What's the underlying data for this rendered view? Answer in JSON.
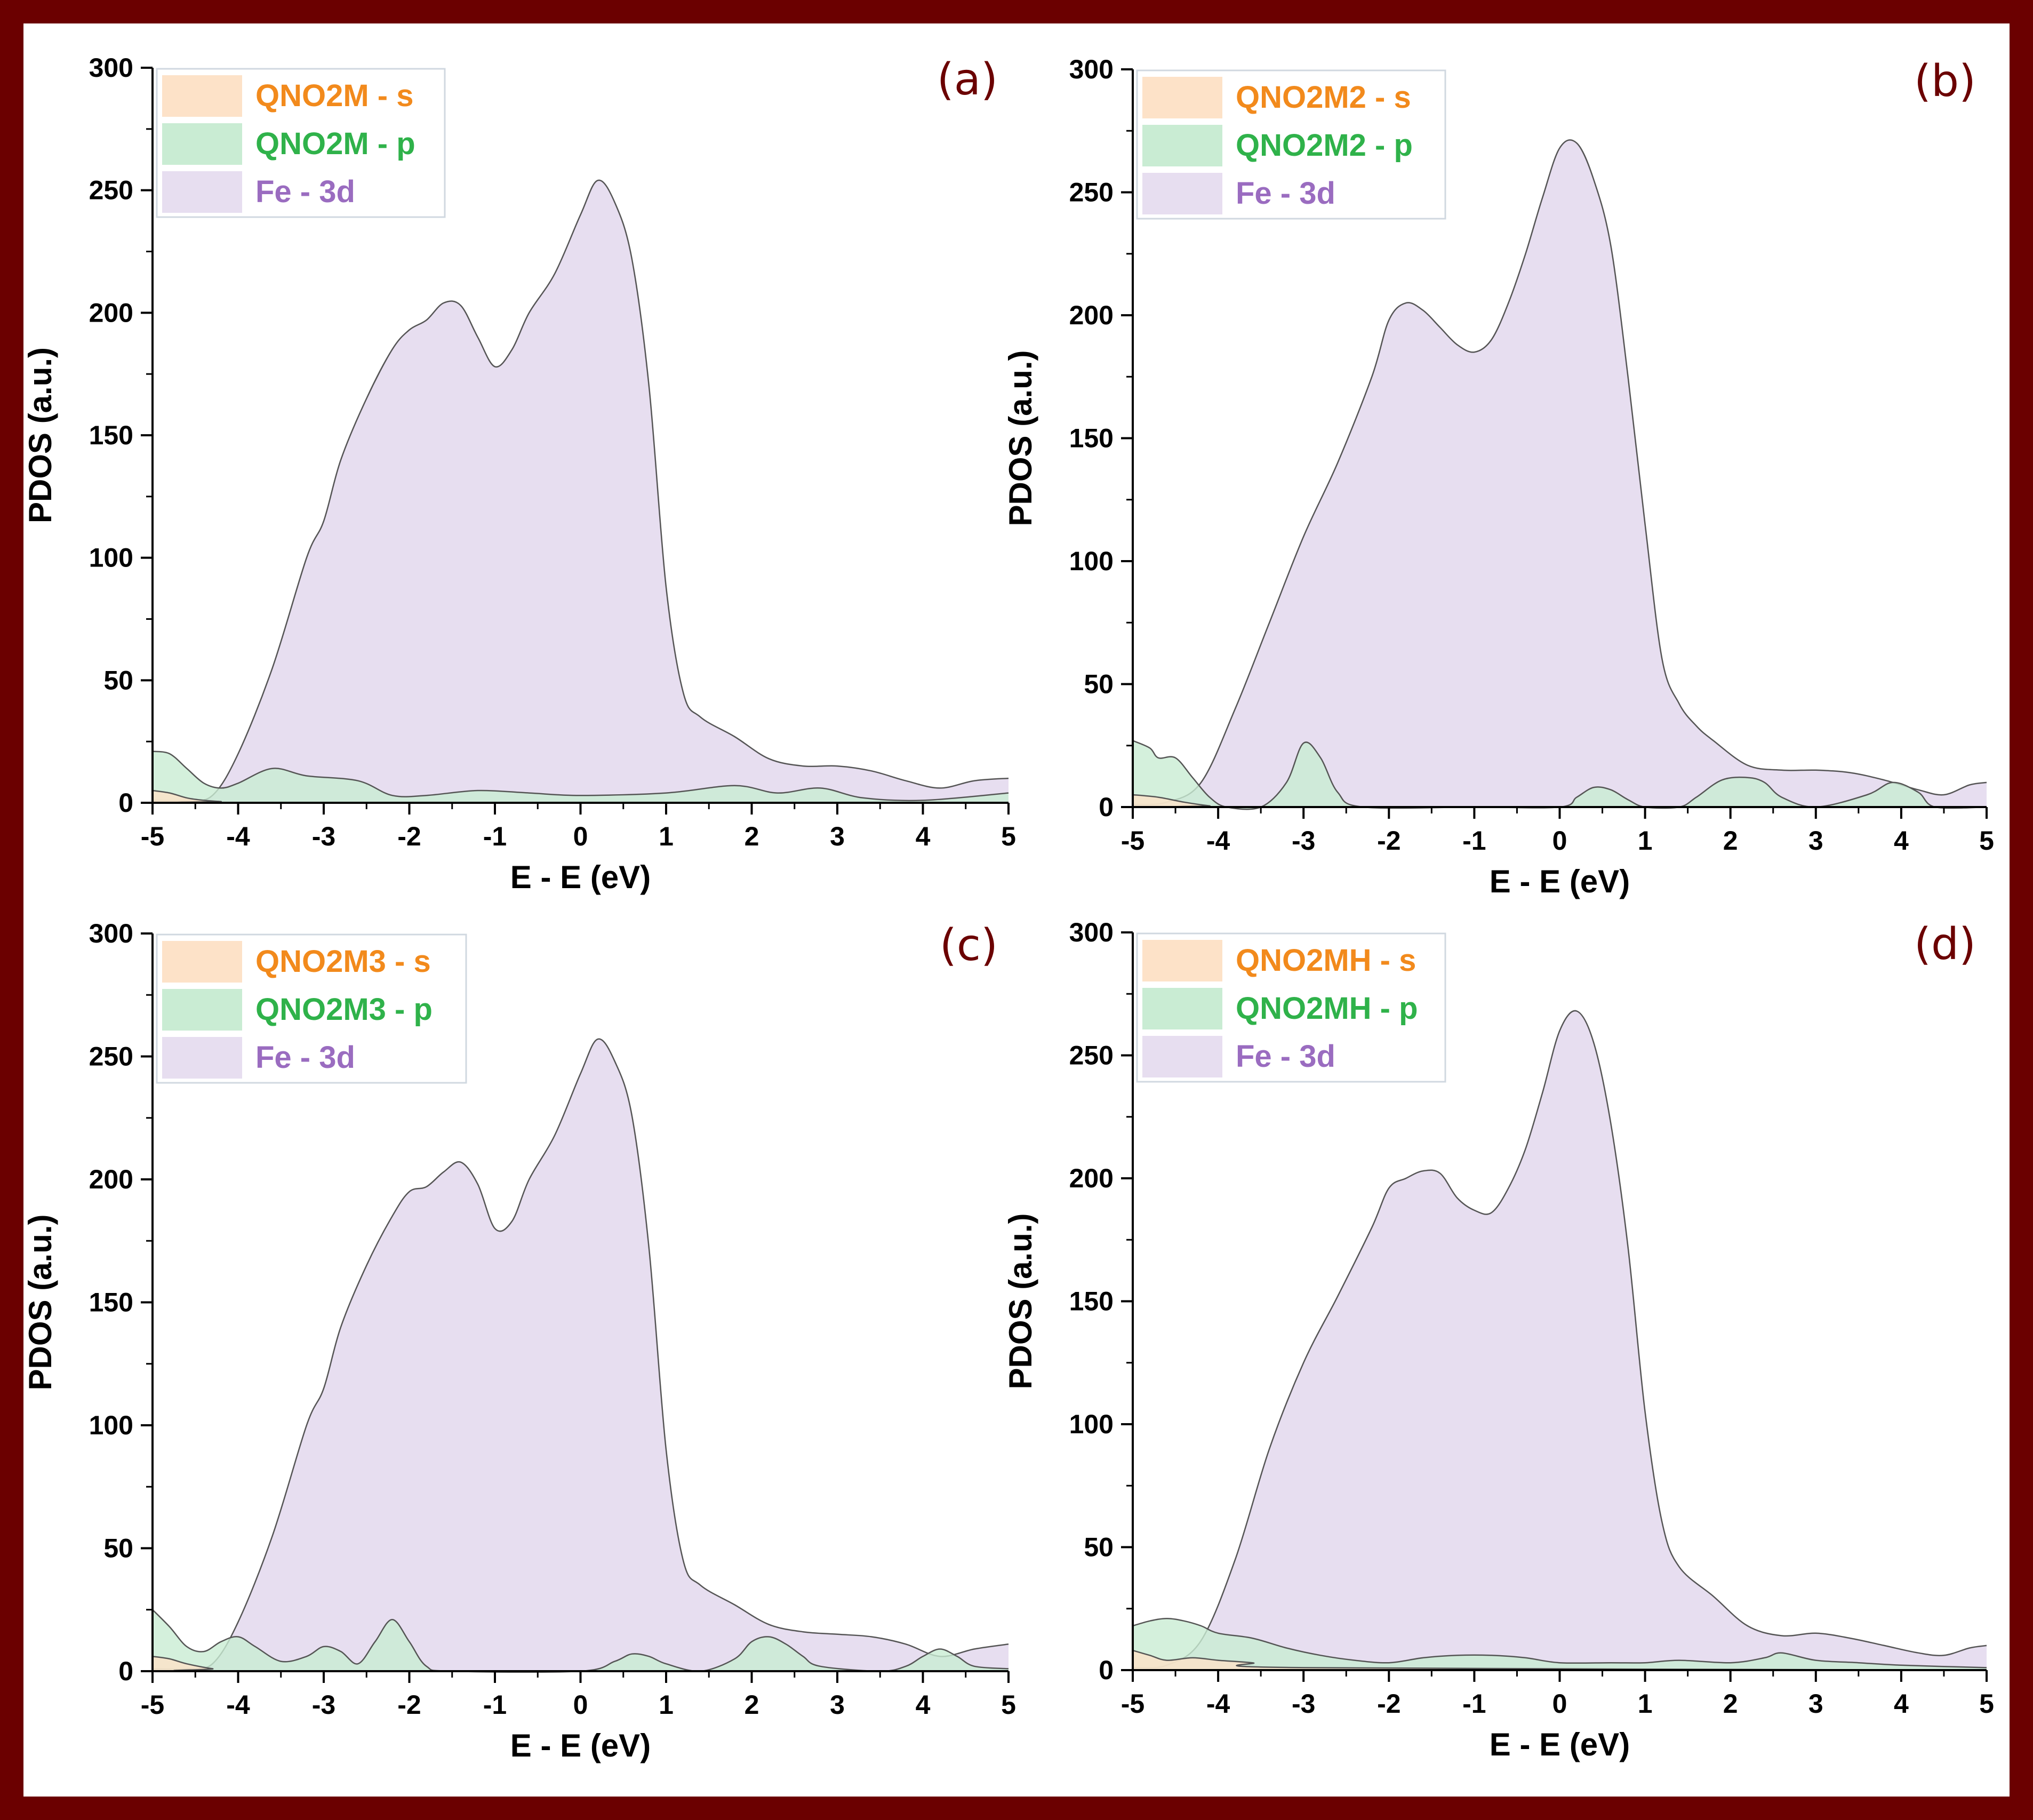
{
  "colors": {
    "frame": "#6b0000",
    "s_fill": "#fde2c8",
    "s_text": "#f28a1c",
    "p_fill": "#c9ecd3",
    "p_text": "#2fb24a",
    "d_fill": "#e7def0",
    "d_text": "#9a6cc0",
    "line": "#555555"
  },
  "chart_data": [
    {
      "type": "area",
      "panel": "(a)",
      "xlabel": "E - E (eV)",
      "ylabel": "PDOS (a.u.)",
      "xlim": [
        -5,
        5
      ],
      "ylim": [
        0,
        300
      ],
      "xticks": [
        "-5",
        "-4",
        "-3",
        "-2",
        "-1",
        "0",
        "1",
        "2",
        "3",
        "4",
        "5"
      ],
      "yticks": [
        "0",
        "50",
        "100",
        "150",
        "200",
        "250",
        "300"
      ],
      "legend_position": "top-left",
      "series": [
        {
          "name": "QNO2M - s",
          "x": [
            -5,
            -4.8,
            -4.6,
            -4.4,
            -4.2,
            -4,
            5
          ],
          "y": [
            5,
            4,
            2,
            1,
            0.5,
            0,
            0
          ]
        },
        {
          "name": "QNO2M - p",
          "x": [
            -5,
            -4.8,
            -4.6,
            -4.4,
            -4.2,
            -4,
            -3.6,
            -3.2,
            -2.6,
            -2.2,
            -1.8,
            -1.2,
            -0.6,
            0,
            1,
            1.8,
            2.3,
            2.8,
            3.3,
            4,
            5
          ],
          "y": [
            21,
            20,
            14,
            8,
            6,
            8,
            14,
            11,
            9,
            3,
            3,
            5,
            4,
            3,
            4,
            7,
            4,
            6,
            2,
            1,
            4
          ]
        },
        {
          "name": "Fe - 3d",
          "x": [
            -5,
            -4.6,
            -4.3,
            -4,
            -3.6,
            -3.2,
            -3,
            -2.8,
            -2.5,
            -2.2,
            -2,
            -1.8,
            -1.6,
            -1.4,
            -1.2,
            -1,
            -0.8,
            -0.6,
            -0.3,
            0,
            0.2,
            0.4,
            0.6,
            0.8,
            1,
            1.2,
            1.4,
            1.8,
            2.2,
            2.6,
            3,
            3.4,
            3.8,
            4.2,
            4.6,
            5
          ],
          "y": [
            1,
            1,
            3,
            20,
            55,
            100,
            115,
            140,
            165,
            185,
            193,
            197,
            204,
            203,
            190,
            178,
            185,
            200,
            216,
            240,
            254,
            245,
            222,
            170,
            88,
            45,
            35,
            27,
            18,
            15,
            15,
            13,
            9,
            6,
            9,
            10
          ]
        }
      ]
    },
    {
      "type": "area",
      "panel": "(b)",
      "xlabel": "E - E (eV)",
      "ylabel": "PDOS (a.u.)",
      "xlim": [
        -5,
        5
      ],
      "ylim": [
        0,
        300
      ],
      "xticks": [
        "-5",
        "-4",
        "-3",
        "-2",
        "-1",
        "0",
        "1",
        "2",
        "3",
        "4",
        "5"
      ],
      "yticks": [
        "0",
        "50",
        "100",
        "150",
        "200",
        "250",
        "300"
      ],
      "legend_position": "top-left",
      "series": [
        {
          "name": "QNO2M2 - s",
          "x": [
            -5,
            -4.7,
            -4.4,
            -4.1,
            -3.9,
            5
          ],
          "y": [
            5,
            4,
            2,
            0.5,
            0,
            0
          ]
        },
        {
          "name": "QNO2M2 - p",
          "x": [
            -5,
            -4.8,
            -4.7,
            -4.5,
            -4.3,
            -4.1,
            -3.9,
            -3.5,
            -3.2,
            -3,
            -2.8,
            -2.6,
            -2.3,
            -1,
            0,
            0.2,
            0.4,
            0.6,
            0.8,
            1,
            1.4,
            1.6,
            1.9,
            2.2,
            2.4,
            2.6,
            3,
            3.6,
            3.9,
            4.2,
            4.4,
            5
          ],
          "y": [
            27,
            24,
            20,
            20,
            12,
            4,
            0,
            0,
            10,
            26,
            20,
            6,
            0,
            0,
            0,
            4,
            8,
            7,
            3,
            0,
            0,
            4,
            11,
            12,
            10,
            4,
            0,
            5,
            10,
            6,
            0,
            0
          ]
        },
        {
          "name": "Fe - 3d",
          "x": [
            -5,
            -4.6,
            -4.2,
            -3.8,
            -3.4,
            -3,
            -2.6,
            -2.2,
            -2,
            -1.8,
            -1.6,
            -1.4,
            -1.2,
            -1,
            -0.8,
            -0.6,
            -0.4,
            -0.2,
            0,
            0.2,
            0.4,
            0.6,
            0.8,
            1,
            1.2,
            1.4,
            1.6,
            1.8,
            2.2,
            2.6,
            3,
            3.4,
            3.8,
            4.2,
            4.5,
            4.8,
            5
          ],
          "y": [
            1,
            2,
            10,
            40,
            75,
            110,
            140,
            175,
            198,
            205,
            202,
            195,
            188,
            185,
            190,
            205,
            225,
            248,
            268,
            270,
            255,
            228,
            175,
            115,
            60,
            42,
            33,
            27,
            17,
            15,
            15,
            14,
            11,
            7,
            5,
            9,
            10
          ]
        }
      ]
    },
    {
      "type": "area",
      "panel": "(c)",
      "xlabel": "E - E (eV)",
      "ylabel": "PDOS (a.u.)",
      "xlim": [
        -5,
        5
      ],
      "ylim": [
        0,
        300
      ],
      "xticks": [
        "-5",
        "-4",
        "-3",
        "-2",
        "-1",
        "0",
        "1",
        "2",
        "3",
        "4",
        "5"
      ],
      "yticks": [
        "0",
        "50",
        "100",
        "150",
        "200",
        "250",
        "300"
      ],
      "legend_position": "top-left",
      "series": [
        {
          "name": "QNO2M3 - s",
          "x": [
            -5,
            -4.8,
            -4.6,
            -4.3,
            -4,
            5
          ],
          "y": [
            6,
            5,
            3,
            1,
            0,
            0
          ]
        },
        {
          "name": "QNO2M3 - p",
          "x": [
            -5,
            -4.8,
            -4.6,
            -4.4,
            -4.2,
            -4,
            -3.8,
            -3.5,
            -3.2,
            -3,
            -2.8,
            -2.6,
            -2.4,
            -2.2,
            -2,
            -1.8,
            -1.5,
            0,
            0.4,
            0.6,
            0.8,
            1,
            1.4,
            1.8,
            2,
            2.2,
            2.4,
            2.6,
            2.8,
            3.5,
            3.8,
            4,
            4.2,
            4.4,
            4.6,
            5
          ],
          "y": [
            25,
            18,
            10,
            8,
            12,
            14,
            10,
            4,
            6,
            10,
            8,
            3,
            12,
            21,
            12,
            2,
            0,
            0,
            4,
            7,
            6,
            3,
            0,
            5,
            12,
            14,
            11,
            6,
            2,
            0,
            2,
            6,
            9,
            6,
            2,
            1
          ]
        },
        {
          "name": "Fe - 3d",
          "x": [
            -5,
            -4.6,
            -4.3,
            -4,
            -3.6,
            -3.2,
            -3,
            -2.8,
            -2.5,
            -2.2,
            -2,
            -1.8,
            -1.6,
            -1.4,
            -1.2,
            -1,
            -0.8,
            -0.6,
            -0.3,
            0,
            0.2,
            0.4,
            0.6,
            0.8,
            1,
            1.2,
            1.4,
            1.8,
            2.2,
            2.6,
            3,
            3.4,
            3.8,
            4.2,
            4.6,
            5
          ],
          "y": [
            1,
            1,
            3,
            20,
            55,
            100,
            115,
            140,
            165,
            185,
            195,
            197,
            203,
            207,
            198,
            180,
            183,
            200,
            218,
            243,
            257,
            248,
            226,
            172,
            90,
            45,
            35,
            27,
            19,
            16,
            15,
            14,
            11,
            6,
            9,
            11
          ]
        }
      ]
    },
    {
      "type": "area",
      "panel": "(d)",
      "xlabel": "E - E (eV)",
      "ylabel": "PDOS (a.u.)",
      "xlim": [
        -5,
        5
      ],
      "ylim": [
        0,
        300
      ],
      "xticks": [
        "-5",
        "-4",
        "-3",
        "-2",
        "-1",
        "0",
        "1",
        "2",
        "3",
        "4",
        "5"
      ],
      "yticks": [
        "0",
        "50",
        "100",
        "150",
        "200",
        "250",
        "300"
      ],
      "legend_position": "top-left",
      "series": [
        {
          "name": "QNO2MH - s",
          "x": [
            -5,
            -4.8,
            -4.6,
            -4.3,
            -4,
            -3.6,
            -3,
            5
          ],
          "y": [
            8,
            6,
            4,
            5,
            4,
            3,
            1,
            0
          ]
        },
        {
          "name": "QNO2MH - p",
          "x": [
            -5,
            -4.8,
            -4.6,
            -4.4,
            -4.2,
            -4,
            -3.6,
            -3.2,
            -2.8,
            -2.4,
            -2,
            -1.6,
            -1.2,
            -0.8,
            -0.4,
            0,
            0.6,
            1,
            1.4,
            2,
            2.4,
            2.6,
            3,
            3.5,
            4,
            5
          ],
          "y": [
            18,
            20,
            21,
            20,
            18,
            15,
            13,
            9,
            6,
            4,
            3,
            5,
            6,
            6,
            5,
            3,
            3,
            3,
            4,
            3,
            5,
            7,
            4,
            3,
            2,
            1
          ]
        },
        {
          "name": "Fe - 3d",
          "x": [
            -5,
            -4.6,
            -4.2,
            -3.8,
            -3.4,
            -3,
            -2.6,
            -2.2,
            -2,
            -1.8,
            -1.6,
            -1.4,
            -1.2,
            -1,
            -0.8,
            -0.6,
            -0.4,
            -0.2,
            0,
            0.2,
            0.4,
            0.6,
            0.8,
            1,
            1.2,
            1.4,
            1.8,
            2.2,
            2.6,
            3,
            3.4,
            3.8,
            4.2,
            4.5,
            4.8,
            5
          ],
          "y": [
            1,
            2,
            12,
            45,
            90,
            125,
            152,
            180,
            196,
            200,
            203,
            202,
            192,
            187,
            186,
            196,
            212,
            235,
            260,
            268,
            255,
            222,
            172,
            105,
            60,
            42,
            30,
            18,
            14,
            15,
            13,
            10,
            7,
            6,
            9,
            10
          ]
        }
      ]
    }
  ]
}
